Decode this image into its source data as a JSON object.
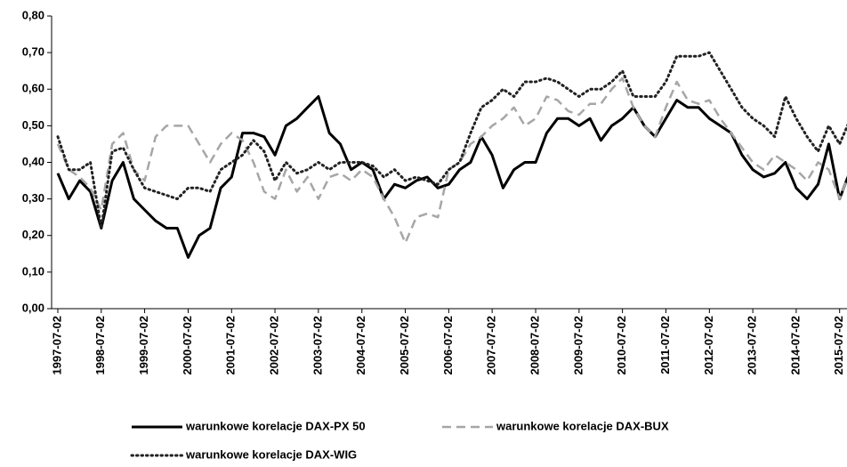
{
  "chart_data": {
    "type": "line",
    "x": [
      "1997-07-02",
      "1997-10-02",
      "1998-01-02",
      "1998-04-02",
      "1998-07-02",
      "1998-10-02",
      "1999-01-02",
      "1999-04-02",
      "1999-07-02",
      "1999-10-02",
      "2000-01-02",
      "2000-04-02",
      "2000-07-02",
      "2000-10-02",
      "2001-01-02",
      "2001-04-02",
      "2001-07-02",
      "2001-10-02",
      "2002-01-02",
      "2002-04-02",
      "2002-07-02",
      "2002-10-02",
      "2003-01-02",
      "2003-04-02",
      "2003-07-02",
      "2003-10-02",
      "2004-01-02",
      "2004-04-02",
      "2004-07-02",
      "2004-10-02",
      "2005-01-02",
      "2005-04-02",
      "2005-07-02",
      "2005-10-02",
      "2006-01-02",
      "2006-04-02",
      "2006-07-02",
      "2006-10-02",
      "2007-01-02",
      "2007-04-02",
      "2007-07-02",
      "2007-10-02",
      "2008-01-02",
      "2008-04-02",
      "2008-07-02",
      "2008-10-02",
      "2009-01-02",
      "2009-04-02",
      "2009-07-02",
      "2009-10-02",
      "2010-01-02",
      "2010-04-02",
      "2010-07-02",
      "2010-10-02",
      "2011-01-02",
      "2011-04-02",
      "2011-07-02",
      "2011-10-02",
      "2012-01-02",
      "2012-04-02",
      "2012-07-02",
      "2012-10-02",
      "2013-01-02",
      "2013-04-02",
      "2013-07-02",
      "2013-10-02",
      "2014-01-02",
      "2014-04-02",
      "2014-07-02",
      "2014-10-02",
      "2015-01-02",
      "2015-04-02",
      "2015-07-02",
      "2015-10-02"
    ],
    "series": [
      {
        "name": "warunkowe korelacje DAX-PX 50",
        "color": "#000000",
        "dash": "solid",
        "values": [
          0.37,
          0.3,
          0.35,
          0.32,
          0.22,
          0.35,
          0.4,
          0.3,
          0.27,
          0.24,
          0.22,
          0.22,
          0.14,
          0.2,
          0.22,
          0.33,
          0.36,
          0.48,
          0.48,
          0.47,
          0.42,
          0.5,
          0.52,
          0.55,
          0.58,
          0.48,
          0.45,
          0.38,
          0.4,
          0.38,
          0.3,
          0.34,
          0.33,
          0.35,
          0.36,
          0.33,
          0.34,
          0.38,
          0.4,
          0.47,
          0.42,
          0.33,
          0.38,
          0.4,
          0.4,
          0.48,
          0.52,
          0.52,
          0.5,
          0.52,
          0.46,
          0.5,
          0.52,
          0.55,
          0.5,
          0.47,
          0.52,
          0.57,
          0.55,
          0.55,
          0.52,
          0.5,
          0.48,
          0.42,
          0.38,
          0.36,
          0.37,
          0.4,
          0.33,
          0.3,
          0.34,
          0.45,
          0.3,
          0.38
        ]
      },
      {
        "name": "warunkowe korelacje DAX-BUX",
        "color": "#a6a6a6",
        "dash": "dashed",
        "values": [
          0.45,
          0.38,
          0.36,
          0.33,
          0.27,
          0.45,
          0.48,
          0.38,
          0.35,
          0.47,
          0.5,
          0.5,
          0.5,
          0.45,
          0.4,
          0.45,
          0.48,
          0.46,
          0.4,
          0.32,
          0.3,
          0.38,
          0.32,
          0.36,
          0.3,
          0.36,
          0.37,
          0.35,
          0.38,
          0.36,
          0.3,
          0.25,
          0.18,
          0.25,
          0.26,
          0.25,
          0.38,
          0.4,
          0.45,
          0.47,
          0.5,
          0.52,
          0.55,
          0.5,
          0.52,
          0.58,
          0.57,
          0.54,
          0.53,
          0.56,
          0.56,
          0.6,
          0.63,
          0.55,
          0.5,
          0.47,
          0.55,
          0.62,
          0.57,
          0.56,
          0.57,
          0.52,
          0.48,
          0.44,
          0.4,
          0.38,
          0.42,
          0.4,
          0.38,
          0.35,
          0.4,
          0.38,
          0.3,
          0.38
        ]
      },
      {
        "name": "warunkowe korelacje DAX-WIG",
        "color": "#222222",
        "dash": "dotted",
        "values": [
          0.47,
          0.38,
          0.38,
          0.4,
          0.22,
          0.43,
          0.44,
          0.38,
          0.33,
          0.32,
          0.31,
          0.3,
          0.33,
          0.33,
          0.32,
          0.38,
          0.4,
          0.42,
          0.46,
          0.43,
          0.35,
          0.4,
          0.37,
          0.38,
          0.4,
          0.38,
          0.4,
          0.4,
          0.4,
          0.39,
          0.36,
          0.38,
          0.35,
          0.36,
          0.35,
          0.34,
          0.38,
          0.4,
          0.48,
          0.55,
          0.57,
          0.6,
          0.58,
          0.62,
          0.62,
          0.63,
          0.62,
          0.6,
          0.58,
          0.6,
          0.6,
          0.62,
          0.65,
          0.58,
          0.58,
          0.58,
          0.62,
          0.69,
          0.69,
          0.69,
          0.7,
          0.65,
          0.6,
          0.55,
          0.52,
          0.5,
          0.47,
          0.58,
          0.52,
          0.47,
          0.43,
          0.5,
          0.45,
          0.52
        ]
      }
    ],
    "xlim": [
      "1997-07-02",
      "2015-10-02"
    ],
    "xticks": [
      "1997-07-02",
      "1998-07-02",
      "1999-07-02",
      "2000-07-02",
      "2001-07-02",
      "2002-07-02",
      "2003-07-02",
      "2004-07-02",
      "2005-07-02",
      "2006-07-02",
      "2007-07-02",
      "2008-07-02",
      "2009-07-02",
      "2010-07-02",
      "2011-07-02",
      "2012-07-02",
      "2013-07-02",
      "2014-07-02",
      "2015-07-02"
    ],
    "ylim": [
      0,
      0.8
    ],
    "yticks": [
      {
        "value": 0,
        "label": "0,00"
      },
      {
        "value": 0.1,
        "label": "0,10"
      },
      {
        "value": 0.2,
        "label": "0,20"
      },
      {
        "value": 0.3,
        "label": "0,30"
      },
      {
        "value": 0.4,
        "label": "0,40"
      },
      {
        "value": 0.5,
        "label": "0,50"
      },
      {
        "value": 0.6,
        "label": "0,60"
      },
      {
        "value": 0.7,
        "label": "0,70"
      },
      {
        "value": 0.8,
        "label": "0,80"
      }
    ],
    "grid": false,
    "legend": "bottom"
  }
}
